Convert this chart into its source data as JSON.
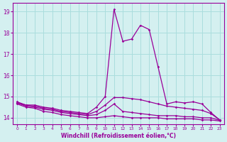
{
  "title": "Windchill (Refroidissement éolien,°C)",
  "bg_color": "#d4f0f0",
  "grid_color": "#aadddd",
  "line_color": "#990099",
  "xlim": [
    -0.5,
    23.5
  ],
  "ylim": [
    13.7,
    19.4
  ],
  "xticks": [
    0,
    1,
    2,
    3,
    4,
    5,
    6,
    7,
    8,
    9,
    10,
    11,
    12,
    13,
    14,
    15,
    16,
    17,
    18,
    19,
    20,
    21,
    22,
    23
  ],
  "yticks": [
    14,
    15,
    16,
    17,
    18,
    19
  ],
  "lines": [
    [
      14.75,
      14.6,
      14.6,
      14.5,
      14.45,
      14.35,
      14.3,
      14.25,
      14.2,
      14.5,
      15.0,
      19.1,
      17.6,
      17.7,
      18.35,
      18.15,
      16.4,
      14.65,
      14.75,
      14.7,
      14.75,
      14.65,
      14.25,
      13.9
    ],
    [
      14.7,
      14.6,
      14.55,
      14.45,
      14.4,
      14.3,
      14.25,
      14.2,
      14.15,
      14.3,
      14.6,
      14.95,
      14.95,
      14.9,
      14.85,
      14.75,
      14.65,
      14.55,
      14.5,
      14.45,
      14.4,
      14.35,
      14.2,
      13.9
    ],
    [
      14.7,
      14.55,
      14.5,
      14.4,
      14.35,
      14.25,
      14.2,
      14.15,
      14.1,
      14.15,
      14.35,
      14.65,
      14.3,
      14.25,
      14.2,
      14.15,
      14.1,
      14.1,
      14.1,
      14.05,
      14.05,
      14.0,
      14.0,
      13.88
    ],
    [
      14.65,
      14.5,
      14.45,
      14.3,
      14.25,
      14.15,
      14.1,
      14.05,
      14.0,
      14.0,
      14.05,
      14.1,
      14.05,
      14.0,
      14.0,
      14.0,
      14.0,
      13.95,
      13.95,
      13.95,
      13.95,
      13.9,
      13.9,
      13.85
    ]
  ]
}
